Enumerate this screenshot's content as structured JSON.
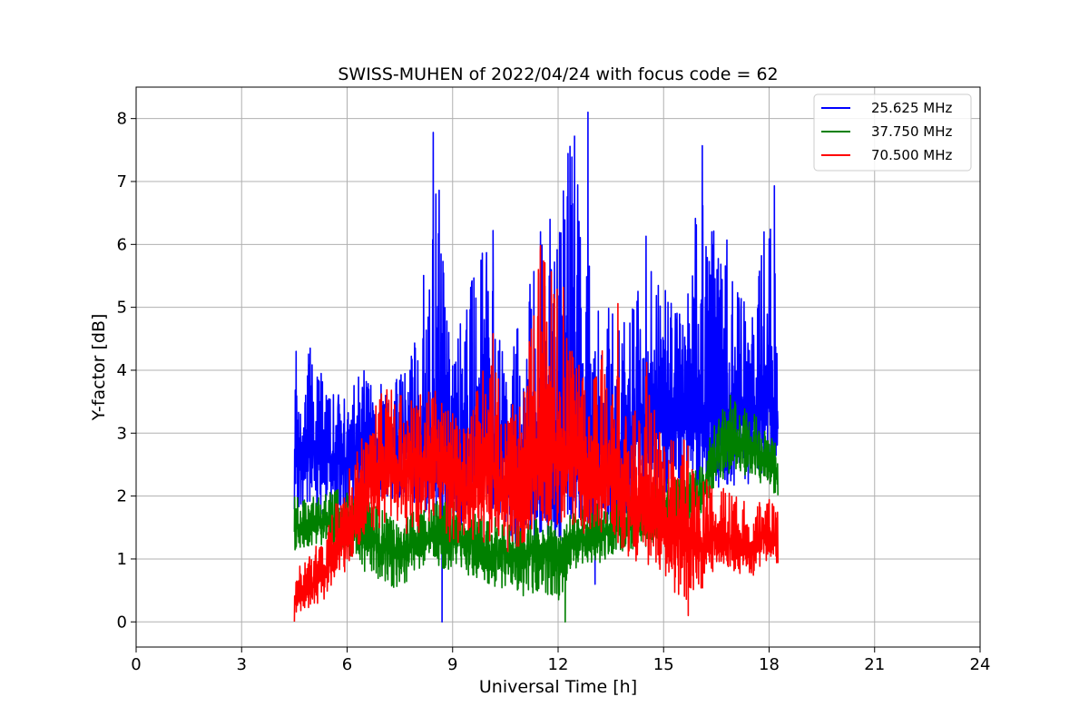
{
  "chart_data": {
    "type": "line",
    "title": "SWISS-MUHEN of 2022/04/24 with focus code = 62",
    "xlabel": "Universal Time [h]",
    "ylabel": "Y-factor [dB]",
    "xlim": [
      0,
      24
    ],
    "ylim": [
      -0.4,
      8.5
    ],
    "xticks": [
      0,
      3,
      6,
      9,
      12,
      15,
      18,
      21,
      24
    ],
    "yticks": [
      0,
      1,
      2,
      3,
      4,
      5,
      6,
      7,
      8
    ],
    "grid": true,
    "legend_position": "top-right",
    "series": [
      {
        "name": "25.625 MHz",
        "color": "#0000ff",
        "x": [
          4.5,
          5.0,
          5.5,
          6.0,
          6.5,
          7.0,
          7.5,
          8.0,
          8.5,
          9.0,
          9.5,
          10.0,
          10.5,
          11.0,
          11.5,
          12.0,
          12.5,
          13.0,
          13.5,
          14.0,
          14.5,
          15.0,
          15.5,
          16.0,
          16.5,
          17.0,
          17.5,
          18.0,
          18.25
        ],
        "y": [
          2.6,
          2.7,
          2.6,
          2.5,
          2.8,
          2.9,
          2.8,
          2.7,
          2.9,
          2.6,
          2.7,
          2.8,
          2.7,
          2.6,
          2.8,
          2.5,
          2.7,
          2.9,
          2.6,
          3.0,
          3.1,
          3.2,
          3.3,
          3.4,
          3.3,
          3.2,
          3.4,
          3.5,
          3.3
        ],
        "low": [
          1.7,
          1.8,
          1.6,
          1.5,
          1.8,
          2.0,
          1.9,
          1.8,
          1.6,
          1.3,
          1.5,
          1.6,
          1.5,
          1.0,
          1.4,
          1.2,
          1.4,
          1.5,
          1.4,
          1.6,
          1.8,
          2.0,
          2.1,
          2.0,
          2.1,
          2.1,
          2.2,
          2.4,
          2.3
        ],
        "high": [
          4.3,
          4.4,
          3.6,
          3.7,
          4.1,
          3.8,
          3.9,
          4.7,
          7.8,
          4.3,
          5.4,
          6.2,
          4.0,
          5.1,
          6.2,
          6.8,
          8.1,
          5.3,
          5.0,
          4.8,
          6.1,
          5.3,
          5.2,
          7.6,
          6.1,
          5.5,
          4.8,
          6.9,
          5.9
        ],
        "spikes": [
          [
            4.55,
            4.3
          ],
          [
            4.95,
            4.35
          ],
          [
            8.45,
            7.78
          ],
          [
            8.7,
            0.0
          ],
          [
            9.55,
            5.42
          ],
          [
            10.15,
            6.22
          ],
          [
            11.5,
            6.2
          ],
          [
            12.15,
            6.85
          ],
          [
            12.85,
            8.1
          ],
          [
            13.05,
            0.6
          ],
          [
            14.5,
            6.13
          ],
          [
            16.1,
            7.57
          ],
          [
            16.8,
            6.07
          ],
          [
            18.15,
            6.93
          ]
        ]
      },
      {
        "name": "37.750 MHz",
        "color": "#008000",
        "x": [
          4.5,
          5.0,
          5.5,
          6.0,
          6.5,
          7.0,
          7.5,
          8.0,
          8.5,
          9.0,
          9.5,
          10.0,
          10.5,
          11.0,
          11.5,
          12.0,
          12.5,
          13.0,
          13.5,
          14.0,
          14.5,
          15.0,
          15.5,
          16.0,
          16.5,
          17.0,
          17.5,
          18.0,
          18.25
        ],
        "y": [
          1.5,
          1.5,
          1.6,
          1.6,
          1.4,
          1.2,
          1.1,
          1.3,
          1.4,
          1.3,
          1.3,
          1.1,
          1.1,
          1.0,
          1.2,
          1.1,
          1.3,
          1.4,
          1.5,
          1.6,
          1.7,
          1.8,
          1.9,
          2.0,
          2.6,
          2.9,
          2.8,
          2.6,
          2.3
        ],
        "low": [
          1.1,
          1.2,
          1.2,
          1.0,
          0.8,
          0.6,
          0.5,
          0.8,
          0.9,
          0.8,
          0.7,
          0.6,
          0.5,
          0.4,
          0.5,
          0.3,
          0.7,
          0.9,
          1.0,
          1.1,
          1.2,
          1.3,
          1.4,
          1.6,
          2.2,
          2.4,
          2.3,
          2.0,
          1.9
        ],
        "high": [
          2.0,
          2.0,
          2.1,
          2.1,
          2.0,
          1.8,
          1.6,
          1.8,
          1.9,
          2.0,
          1.8,
          1.7,
          1.6,
          1.5,
          1.7,
          1.6,
          1.8,
          1.9,
          2.0,
          2.1,
          2.2,
          2.3,
          2.3,
          2.5,
          3.3,
          3.6,
          3.4,
          3.0,
          2.8
        ],
        "spikes": [
          [
            12.2,
            0.0
          ],
          [
            16.9,
            3.6
          ]
        ]
      },
      {
        "name": "70.500 MHz",
        "color": "#ff0000",
        "x": [
          4.5,
          5.0,
          5.5,
          6.0,
          6.5,
          7.0,
          7.5,
          8.0,
          8.5,
          9.0,
          9.5,
          10.0,
          10.5,
          11.0,
          11.5,
          12.0,
          12.5,
          13.0,
          13.5,
          14.0,
          14.5,
          15.0,
          15.5,
          16.0,
          16.5,
          17.0,
          17.5,
          18.0,
          18.25
        ],
        "y": [
          0.4,
          0.6,
          0.9,
          1.4,
          2.0,
          2.5,
          2.4,
          2.3,
          2.6,
          2.4,
          2.0,
          2.5,
          2.1,
          2.2,
          2.8,
          2.7,
          2.5,
          2.4,
          2.3,
          1.9,
          1.7,
          1.6,
          1.5,
          1.2,
          1.4,
          1.3,
          1.2,
          1.4,
          1.3
        ],
        "low": [
          0.0,
          0.2,
          0.4,
          0.8,
          1.3,
          1.5,
          1.4,
          1.4,
          1.5,
          1.2,
          1.0,
          1.3,
          1.1,
          1.2,
          1.5,
          1.5,
          1.4,
          1.4,
          1.3,
          1.0,
          0.9,
          0.8,
          0.1,
          0.4,
          0.9,
          0.8,
          0.7,
          1.0,
          0.9
        ],
        "high": [
          0.8,
          1.1,
          1.6,
          2.4,
          3.2,
          3.8,
          3.6,
          3.6,
          3.8,
          3.6,
          3.2,
          4.6,
          3.4,
          3.6,
          6.0,
          5.3,
          4.2,
          3.9,
          5.1,
          3.0,
          4.2,
          2.9,
          3.1,
          2.4,
          2.2,
          2.0,
          1.9,
          2.0,
          1.8
        ],
        "spikes": [
          [
            10.15,
            4.58
          ],
          [
            11.5,
            5.98
          ],
          [
            12.15,
            5.32
          ],
          [
            13.7,
            5.06
          ],
          [
            15.7,
            0.1
          ]
        ]
      }
    ]
  }
}
